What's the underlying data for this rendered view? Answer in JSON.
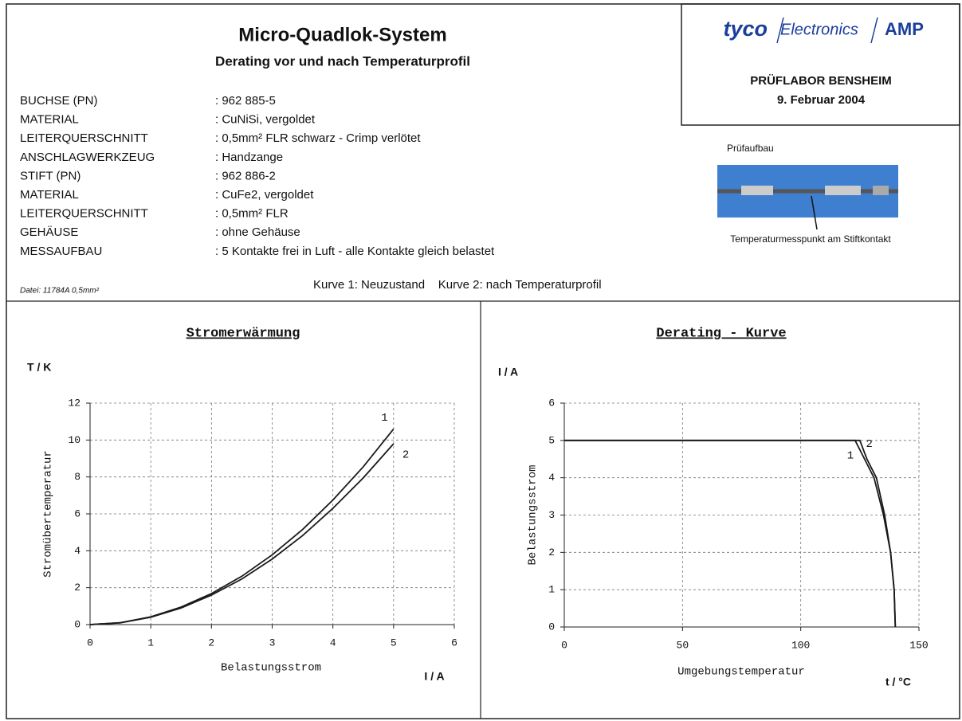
{
  "header": {
    "title": "Micro-Quadlok-System",
    "subtitle": "Derating vor und nach Temperaturprofil",
    "specs": [
      [
        "BUCHSE (PN)",
        ": 962 885-5"
      ],
      [
        "MATERIAL",
        ": CuNiSi, vergoldet"
      ],
      [
        "LEITERQUERSCHNITT",
        ": 0,5mm² FLR  schwarz - Crimp verlötet"
      ],
      [
        "ANSCHLAGWERKZEUG",
        ": Handzange"
      ],
      [
        "STIFT (PN)",
        ": 962 886-2"
      ],
      [
        "MATERIAL",
        ": CuFe2, vergoldet"
      ],
      [
        "LEITERQUERSCHNITT",
        ": 0,5mm² FLR"
      ],
      [
        "GEHÄUSE",
        ": ohne Gehäuse"
      ],
      [
        "MESSAUFBAU",
        ": 5 Kontakte frei in Luft - alle Kontakte gleich belastet"
      ]
    ],
    "file_note": "Datei: 11784A 0,5mm²",
    "curves_note": "Kurve 1: Neuzustand    Kurve 2: nach Temperaturprofil"
  },
  "logo": {
    "brand": "tyco",
    "division": "Electronics",
    "brand2": "AMP"
  },
  "lab": {
    "name": "PRÜFLABOR BENSHEIM",
    "date": "9. Februar 2004"
  },
  "setup": {
    "caption": "Prüfaufbau",
    "callout": "Temperaturmesspunkt am Stiftkontakt"
  },
  "chart_data": [
    {
      "type": "line",
      "title": "Stromerwärmung",
      "y_unit": "T / K",
      "x_unit": "I / A",
      "xlabel": "Belastungsstrom",
      "ylabel": "Stromübertemperatur",
      "xlim": [
        0,
        6
      ],
      "ylim": [
        0,
        12
      ],
      "xticks": [
        0,
        1,
        2,
        3,
        4,
        5,
        6
      ],
      "yticks": [
        0,
        2,
        4,
        6,
        8,
        10,
        12
      ],
      "grid": true,
      "series": [
        {
          "color": "#1a1a1a",
          "x": [
            0,
            0.5,
            1,
            1.5,
            2,
            2.5,
            3,
            3.5,
            4,
            4.5,
            5
          ],
          "values": [
            0,
            0.1,
            0.42,
            0.95,
            1.68,
            2.62,
            3.78,
            5.15,
            6.75,
            8.55,
            10.6
          ]
        },
        {
          "color": "#1a1a1a",
          "x": [
            0,
            0.5,
            1,
            1.5,
            2,
            2.5,
            3,
            3.5,
            4,
            4.5,
            5
          ],
          "values": [
            0,
            0.1,
            0.4,
            0.9,
            1.6,
            2.47,
            3.55,
            4.82,
            6.3,
            7.95,
            9.8
          ]
        }
      ],
      "annotations": [
        {
          "text": "1",
          "x": 4.85,
          "y": 11.2
        },
        {
          "text": "2",
          "x": 5.2,
          "y": 9.2
        }
      ]
    },
    {
      "type": "line",
      "title": "Derating - Kurve",
      "y_unit": "I / A",
      "x_unit": "t / °C",
      "xlabel": "Umgebungstemperatur",
      "ylabel": "Belastungsstrom",
      "xlim": [
        0,
        150
      ],
      "ylim": [
        0,
        6
      ],
      "xticks": [
        0,
        50,
        100,
        150
      ],
      "yticks": [
        0,
        1,
        2,
        3,
        4,
        5,
        6
      ],
      "grid": true,
      "series": [
        {
          "color": "#1a1a1a",
          "x": [
            0,
            123,
            127,
            131,
            135,
            138,
            139.5,
            140
          ],
          "values": [
            5,
            5,
            4.5,
            4,
            3,
            2,
            1,
            0
          ]
        },
        {
          "color": "#1a1a1a",
          "x": [
            0,
            125,
            128,
            132,
            135.5,
            138,
            139.5,
            140
          ],
          "values": [
            5,
            5,
            4.5,
            4,
            3,
            2,
            1,
            0
          ]
        }
      ],
      "annotations": [
        {
          "text": "1",
          "x": 121,
          "y": 4.6
        },
        {
          "text": "2",
          "x": 129,
          "y": 4.9
        }
      ]
    }
  ]
}
